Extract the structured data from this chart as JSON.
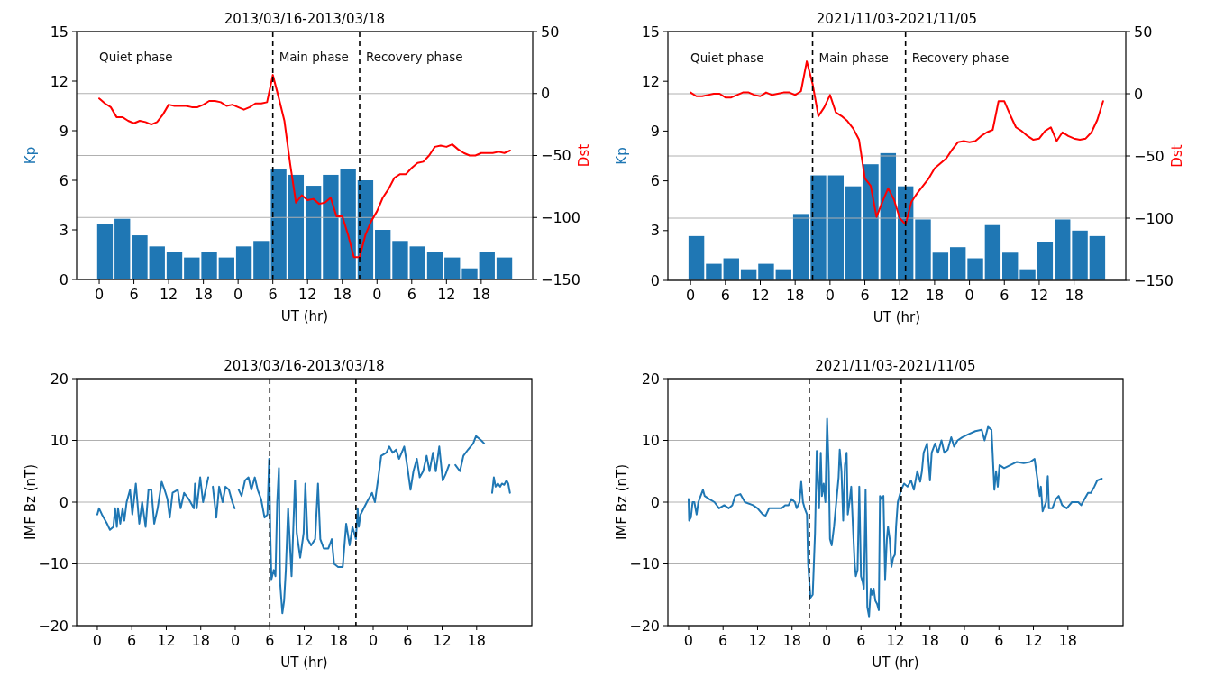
{
  "chart_data": [
    {
      "type": "bar",
      "title": "2013/03/16-2013/03/18",
      "xlabel": "UT (hr)",
      "ylabel": "Kp",
      "y2label": "Dst",
      "x": [
        "2013-03-16T01:00",
        "2013-03-16T04:00",
        "2013-03-16T07:00",
        "2013-03-16T10:00",
        "2013-03-16T13:00",
        "2013-03-16T16:00",
        "2013-03-16T19:00",
        "2013-03-16T22:00",
        "2013-03-17T01:00",
        "2013-03-17T04:00",
        "2013-03-17T07:00",
        "2013-03-17T10:00",
        "2013-03-17T13:00",
        "2013-03-17T16:00",
        "2013-03-17T19:00",
        "2013-03-17T22:00",
        "2013-03-18T01:00",
        "2013-03-18T04:00",
        "2013-03-18T07:00",
        "2013-03-18T10:00",
        "2013-03-18T13:00",
        "2013-03-18T16:00",
        "2013-03-18T19:00",
        "2013-03-18T22:00"
      ],
      "series": [
        {
          "color": "#1f77b4",
          "values": [
            3.33,
            3.67,
            2.67,
            2,
            1.67,
            1.33,
            1.67,
            1.33,
            2,
            2.33,
            6.67,
            6.33,
            5.67,
            6.33,
            6.67,
            6,
            3,
            2.33,
            2,
            1.67,
            1.33,
            0.67,
            1.67,
            1.33
          ]
        },
        {
          "type": "line",
          "axis": "y2",
          "color": "#ff0000",
          "x": [
            "2013-03-16T00:00",
            "2013-03-16T01:00",
            "2013-03-16T02:00",
            "2013-03-16T03:00",
            "2013-03-16T04:00",
            "2013-03-16T05:00",
            "2013-03-16T06:00",
            "2013-03-16T07:00",
            "2013-03-16T08:00",
            "2013-03-16T09:00",
            "2013-03-16T10:00",
            "2013-03-16T11:00",
            "2013-03-16T12:00",
            "2013-03-16T13:00",
            "2013-03-16T14:00",
            "2013-03-16T15:00",
            "2013-03-16T16:00",
            "2013-03-16T17:00",
            "2013-03-16T18:00",
            "2013-03-16T19:00",
            "2013-03-16T20:00",
            "2013-03-16T21:00",
            "2013-03-16T22:00",
            "2013-03-16T23:00",
            "2013-03-17T00:00",
            "2013-03-17T01:00",
            "2013-03-17T02:00",
            "2013-03-17T03:00",
            "2013-03-17T04:00",
            "2013-03-17T05:00",
            "2013-03-17T06:00",
            "2013-03-17T07:00",
            "2013-03-17T08:00",
            "2013-03-17T09:00",
            "2013-03-17T10:00",
            "2013-03-17T11:00",
            "2013-03-17T12:00",
            "2013-03-17T13:00",
            "2013-03-17T14:00",
            "2013-03-17T15:00",
            "2013-03-17T16:00",
            "2013-03-17T17:00",
            "2013-03-17T18:00",
            "2013-03-17T19:00",
            "2013-03-17T20:00",
            "2013-03-17T21:00",
            "2013-03-17T22:00",
            "2013-03-17T23:00",
            "2013-03-18T00:00",
            "2013-03-18T01:00",
            "2013-03-18T02:00",
            "2013-03-18T03:00",
            "2013-03-18T04:00",
            "2013-03-18T05:00",
            "2013-03-18T06:00",
            "2013-03-18T07:00",
            "2013-03-18T08:00",
            "2013-03-18T09:00",
            "2013-03-18T10:00",
            "2013-03-18T11:00",
            "2013-03-18T12:00",
            "2013-03-18T13:00",
            "2013-03-18T14:00",
            "2013-03-18T15:00",
            "2013-03-18T16:00",
            "2013-03-18T17:00",
            "2013-03-18T18:00",
            "2013-03-18T19:00",
            "2013-03-18T20:00",
            "2013-03-18T21:00",
            "2013-03-18T22:00",
            "2013-03-18T23:00"
          ],
          "values": [
            -4,
            -8,
            -11,
            -19,
            -19,
            -22,
            -24,
            -22,
            -23,
            -25,
            -23,
            -17,
            -9,
            -10,
            -10,
            -10,
            -11,
            -11,
            -9,
            -6,
            -6,
            -7,
            -10,
            -9,
            -11,
            -13,
            -11,
            -8,
            -8,
            -7,
            15,
            -3,
            -22,
            -57,
            -88,
            -82,
            -86,
            -85,
            -89,
            -88,
            -84,
            -99,
            -99,
            -114,
            -132,
            -132,
            -114,
            -103,
            -95,
            -84,
            -77,
            -68,
            -65,
            -65,
            -60,
            -56,
            -55,
            -50,
            -43,
            -42,
            -43,
            -41,
            -45,
            -48,
            -50,
            -50,
            -48,
            -48,
            -48,
            -47,
            -48,
            -46
          ]
        }
      ],
      "xlim": [
        "2013-03-15T20:06",
        "2013-03-19T02:54"
      ],
      "xticks": [
        {
          "value": "2013-03-16T00:00",
          "label": "0"
        },
        {
          "value": "2013-03-16T06:00",
          "label": "6"
        },
        {
          "value": "2013-03-16T12:00",
          "label": "12"
        },
        {
          "value": "2013-03-16T18:00",
          "label": "18"
        },
        {
          "value": "2013-03-17T00:00",
          "label": "0"
        },
        {
          "value": "2013-03-17T06:00",
          "label": "6"
        },
        {
          "value": "2013-03-17T12:00",
          "label": "12"
        },
        {
          "value": "2013-03-17T18:00",
          "label": "18"
        },
        {
          "value": "2013-03-18T00:00",
          "label": "0"
        },
        {
          "value": "2013-03-18T06:00",
          "label": "6"
        },
        {
          "value": "2013-03-18T12:00",
          "label": "12"
        },
        {
          "value": "2013-03-18T18:00",
          "label": "18"
        }
      ],
      "ylim": [
        0,
        15
      ],
      "yticks": [
        0,
        3,
        6,
        9,
        12,
        15
      ],
      "y2lim": [
        -150,
        50
      ],
      "y2ticks": [
        -150,
        -100,
        -50,
        0,
        50
      ],
      "grid": "y2",
      "ref_lines": [
        {
          "axis": "x",
          "value": "2013-03-17T06:00",
          "color": "#000000",
          "line_style": "dashed"
        },
        {
          "axis": "x",
          "value": "2013-03-17T21:00",
          "color": "#000000",
          "line_style": "dashed"
        }
      ],
      "annotations": [
        "Quiet phase",
        "Main phase",
        "Recovery phase"
      ]
    },
    {
      "type": "bar",
      "title": "2021/11/03-2021/11/05",
      "xlabel": "UT (hr)",
      "ylabel": "Kp",
      "y2label": "Dst",
      "x": [
        "2021-11-03T01:00",
        "2021-11-03T04:00",
        "2021-11-03T07:00",
        "2021-11-03T10:00",
        "2021-11-03T13:00",
        "2021-11-03T16:00",
        "2021-11-03T19:00",
        "2021-11-03T22:00",
        "2021-11-04T01:00",
        "2021-11-04T04:00",
        "2021-11-04T07:00",
        "2021-11-04T10:00",
        "2021-11-04T13:00",
        "2021-11-04T16:00",
        "2021-11-04T19:00",
        "2021-11-04T22:00",
        "2021-11-05T01:00",
        "2021-11-05T04:00",
        "2021-11-05T07:00",
        "2021-11-05T10:00",
        "2021-11-05T13:00",
        "2021-11-05T16:00",
        "2021-11-05T19:00",
        "2021-11-05T22:00"
      ],
      "series": [
        {
          "color": "#1f77b4",
          "values": [
            2.67,
            1,
            1.33,
            0.67,
            1,
            0.67,
            4,
            6.33,
            6.33,
            5.67,
            7,
            7.67,
            5.67,
            3.67,
            1.67,
            2,
            1.33,
            3.33,
            1.67,
            0.67,
            2.33,
            3.67,
            3,
            2.67
          ]
        },
        {
          "type": "line",
          "axis": "y2",
          "color": "#ff0000",
          "x": [
            "2021-11-03T00:00",
            "2021-11-03T01:00",
            "2021-11-03T02:00",
            "2021-11-03T03:00",
            "2021-11-03T04:00",
            "2021-11-03T05:00",
            "2021-11-03T06:00",
            "2021-11-03T07:00",
            "2021-11-03T08:00",
            "2021-11-03T09:00",
            "2021-11-03T10:00",
            "2021-11-03T11:00",
            "2021-11-03T12:00",
            "2021-11-03T13:00",
            "2021-11-03T14:00",
            "2021-11-03T15:00",
            "2021-11-03T16:00",
            "2021-11-03T17:00",
            "2021-11-03T18:00",
            "2021-11-03T19:00",
            "2021-11-03T20:00",
            "2021-11-03T21:00",
            "2021-11-03T22:00",
            "2021-11-03T23:00",
            "2021-11-04T00:00",
            "2021-11-04T01:00",
            "2021-11-04T02:00",
            "2021-11-04T03:00",
            "2021-11-04T04:00",
            "2021-11-04T05:00",
            "2021-11-04T06:00",
            "2021-11-04T07:00",
            "2021-11-04T08:00",
            "2021-11-04T09:00",
            "2021-11-04T10:00",
            "2021-11-04T11:00",
            "2021-11-04T12:00",
            "2021-11-04T13:00",
            "2021-11-04T14:00",
            "2021-11-04T15:00",
            "2021-11-04T16:00",
            "2021-11-04T17:00",
            "2021-11-04T18:00",
            "2021-11-04T19:00",
            "2021-11-04T20:00",
            "2021-11-04T21:00",
            "2021-11-04T22:00",
            "2021-11-04T23:00",
            "2021-11-05T00:00",
            "2021-11-05T01:00",
            "2021-11-05T02:00",
            "2021-11-05T03:00",
            "2021-11-05T04:00",
            "2021-11-05T05:00",
            "2021-11-05T06:00",
            "2021-11-05T07:00",
            "2021-11-05T08:00",
            "2021-11-05T09:00",
            "2021-11-05T10:00",
            "2021-11-05T11:00",
            "2021-11-05T12:00",
            "2021-11-05T13:00",
            "2021-11-05T14:00",
            "2021-11-05T15:00",
            "2021-11-05T16:00",
            "2021-11-05T17:00",
            "2021-11-05T18:00",
            "2021-11-05T19:00",
            "2021-11-05T20:00",
            "2021-11-05T21:00",
            "2021-11-05T22:00",
            "2021-11-05T23:00"
          ],
          "values": [
            1,
            -2,
            -2,
            -1,
            0,
            0,
            -3,
            -3,
            -1,
            1,
            1,
            -1,
            -2,
            1,
            -1,
            0,
            1,
            1,
            -1,
            2,
            26,
            8,
            -18,
            -11,
            -1,
            -15,
            -18,
            -22,
            -28,
            -37,
            -68,
            -74,
            -99,
            -87,
            -76,
            -85,
            -100,
            -105,
            -87,
            -80,
            -74,
            -68,
            -60,
            -56,
            -52,
            -45,
            -39,
            -38,
            -39,
            -38,
            -34,
            -31,
            -29,
            -6,
            -6,
            -17,
            -27,
            -30,
            -34,
            -37,
            -36,
            -30,
            -27,
            -38,
            -31,
            -34,
            -36,
            -37,
            -36,
            -31,
            -21,
            -6
          ]
        }
      ],
      "xlim": [
        "2021-11-02T20:06",
        "2021-11-06T02:54"
      ],
      "xticks": [
        {
          "value": "2021-11-03T00:00",
          "label": "0"
        },
        {
          "value": "2021-11-03T06:00",
          "label": "6"
        },
        {
          "value": "2021-11-03T12:00",
          "label": "12"
        },
        {
          "value": "2021-11-03T18:00",
          "label": "18"
        },
        {
          "value": "2021-11-04T00:00",
          "label": "0"
        },
        {
          "value": "2021-11-04T06:00",
          "label": "6"
        },
        {
          "value": "2021-11-04T12:00",
          "label": "12"
        },
        {
          "value": "2021-11-04T18:00",
          "label": "18"
        },
        {
          "value": "2021-11-05T00:00",
          "label": "0"
        },
        {
          "value": "2021-11-05T06:00",
          "label": "6"
        },
        {
          "value": "2021-11-05T12:00",
          "label": "12"
        },
        {
          "value": "2021-11-05T18:00",
          "label": "18"
        }
      ],
      "ylim": [
        0,
        15
      ],
      "yticks": [
        0,
        3,
        6,
        9,
        12,
        15
      ],
      "y2lim": [
        -150,
        50
      ],
      "y2ticks": [
        -150,
        -100,
        -50,
        0,
        50
      ],
      "grid": "y2",
      "ref_lines": [
        {
          "axis": "x",
          "value": "2021-11-03T21:00",
          "color": "#000000",
          "line_style": "dashed"
        },
        {
          "axis": "x",
          "value": "2021-11-04T13:00",
          "color": "#000000",
          "line_style": "dashed"
        }
      ],
      "annotations": [
        "Quiet phase",
        "Main phase",
        "Recovery phase"
      ]
    },
    {
      "type": "line",
      "title": "2013/03/16-2013/03/18",
      "xlabel": "UT (hr)",
      "ylabel": "IMF Bz (nT)",
      "series": [
        {
          "color": "#1f77b4",
          "x": [
            "2013-03-16T00:00",
            "2013-03-16T00:18",
            "2013-03-16T00:48",
            "2013-03-16T01:42",
            "2013-03-16T02:12",
            "2013-03-16T02:48",
            "2013-03-16T03:06",
            "2013-03-16T03:24",
            "2013-03-16T03:36",
            "2013-03-16T04:00",
            "2013-03-16T04:24",
            "2013-03-16T04:42",
            "2013-03-16T05:06",
            "2013-03-16T05:42",
            "2013-03-16T06:06",
            "2013-03-16T06:42",
            "2013-03-16T07:18",
            "2013-03-16T07:48",
            "2013-03-16T08:24",
            "2013-03-16T08:54",
            "2013-03-16T09:24",
            "2013-03-16T09:54",
            "2013-03-16T10:30",
            "2013-03-16T11:12",
            "2013-03-16T11:42",
            "2013-03-16T12:12",
            "2013-03-16T12:36",
            "2013-03-16T13:06",
            "2013-03-16T14:00",
            "2013-03-16T14:30",
            "2013-03-16T15:06",
            "2013-03-16T15:54",
            "2013-03-16T16:48",
            "2013-03-16T17:00",
            "2013-03-16T17:18",
            "2013-03-16T17:54",
            "2013-03-16T18:24",
            "2013-03-16T19:18",
            "2013-03-16T19:42",
            "2013-03-16T20:06",
            "2013-03-16T20:42",
            "2013-03-16T21:12",
            "2013-03-16T21:48",
            "2013-03-16T22:18",
            "2013-03-16T22:54",
            "2013-03-16T23:30",
            "2013-03-16T23:54",
            "2013-03-17T00:18",
            "2013-03-17T00:36",
            "2013-03-17T01:06",
            "2013-03-17T01:42",
            "2013-03-17T02:18",
            "2013-03-17T02:48",
            "2013-03-17T03:24",
            "2013-03-17T03:54",
            "2013-03-17T04:30",
            "2013-03-17T05:06",
            "2013-03-17T05:36",
            "2013-03-17T05:54",
            "2013-03-17T06:06",
            "2013-03-17T06:18",
            "2013-03-17T06:42",
            "2013-03-17T07:00",
            "2013-03-17T07:18",
            "2013-03-17T07:36",
            "2013-03-17T07:48",
            "2013-03-17T08:12",
            "2013-03-17T08:30",
            "2013-03-17T08:48",
            "2013-03-17T09:12",
            "2013-03-17T09:48",
            "2013-03-17T10:24",
            "2013-03-17T10:42",
            "2013-03-17T11:18",
            "2013-03-17T11:54",
            "2013-03-17T12:12",
            "2013-03-17T12:36",
            "2013-03-17T13:12",
            "2013-03-17T13:54",
            "2013-03-17T14:24",
            "2013-03-17T14:48",
            "2013-03-17T15:24",
            "2013-03-17T16:12",
            "2013-03-17T16:48",
            "2013-03-17T17:12",
            "2013-03-17T17:54",
            "2013-03-17T18:42",
            "2013-03-17T19:18",
            "2013-03-17T19:54",
            "2013-03-17T20:24",
            "2013-03-17T21:00",
            "2013-03-17T21:18",
            "2013-03-17T21:30",
            "2013-03-17T21:48",
            "2013-03-17T22:54",
            "2013-03-17T23:48",
            "2013-03-18T00:18",
            "2013-03-18T00:54",
            "2013-03-18T01:24",
            "2013-03-18T02:18",
            "2013-03-18T02:48",
            "2013-03-18T03:24",
            "2013-03-18T04:00",
            "2013-03-18T04:30",
            "2013-03-18T05:24",
            "2013-03-18T05:54",
            "2013-03-18T06:30",
            "2013-03-18T07:00",
            "2013-03-18T07:36",
            "2013-03-18T08:06",
            "2013-03-18T08:42",
            "2013-03-18T09:18",
            "2013-03-18T09:48",
            "2013-03-18T10:24",
            "2013-03-18T10:54",
            "2013-03-18T11:30",
            "2013-03-18T12:06",
            "2013-03-18T12:36",
            "2013-03-18T13:12",
            "2013-03-18T13:42",
            "2013-03-18T14:18",
            "2013-03-18T15:06",
            "2013-03-18T15:42",
            "2013-03-18T16:30",
            "2013-03-18T17:24",
            "2013-03-18T17:54",
            "2013-03-18T18:48",
            "2013-03-18T19:18",
            "2013-03-18T20:00",
            "2013-03-18T20:42",
            "2013-03-18T21:00",
            "2013-03-18T21:18",
            "2013-03-18T21:42",
            "2013-03-18T22:06",
            "2013-03-18T22:24",
            "2013-03-18T22:48",
            "2013-03-18T23:12",
            "2013-03-18T23:30",
            "2013-03-18T23:48"
          ],
          "values": [
            -2,
            -1,
            -2,
            -3.5,
            -4.5,
            -4,
            -1,
            -4,
            -1,
            -3.5,
            -1,
            -3,
            0,
            2,
            -2,
            3,
            -3.5,
            0,
            -4,
            2,
            2,
            -3.5,
            -1,
            3.3,
            2,
            0.5,
            -2.5,
            1.5,
            2,
            -1,
            1.5,
            0.5,
            -1,
            3,
            -1,
            4,
            0,
            4,
            null,
            2.5,
            -2.5,
            2.5,
            0,
            2.5,
            2,
            0,
            -1,
            null,
            2,
            1,
            3.5,
            4,
            2,
            4,
            2,
            0.5,
            -2.5,
            -2,
            7,
            -5,
            -12.5,
            -11,
            -12,
            0,
            5.5,
            -13,
            -18,
            -16,
            -11,
            -1,
            -12,
            3.5,
            -5,
            -9,
            -5,
            3,
            -6,
            -7,
            -6,
            3,
            -6,
            -7.5,
            -7.5,
            -6,
            -10,
            -10.5,
            -10.5,
            -3.5,
            -7,
            -4,
            -6,
            -1,
            -4,
            -2,
            0,
            1.5,
            0,
            4,
            7.5,
            8,
            9,
            8,
            8.5,
            7,
            9,
            6,
            2,
            5,
            7,
            4,
            5,
            7.5,
            5,
            8,
            5,
            9,
            3.5,
            4.5,
            6,
            null,
            6,
            5,
            7.5,
            8.5,
            9.5,
            10.7,
            10,
            9.5,
            null,
            1.5,
            4,
            2.5,
            3,
            2.5,
            3,
            2.8,
            3.5,
            3,
            1.5
          ]
        }
      ],
      "xlim": [
        "2013-03-15T20:24",
        "2013-03-19T03:36"
      ],
      "xticks": [
        {
          "value": "2013-03-16T00:00",
          "label": "0"
        },
        {
          "value": "2013-03-16T06:00",
          "label": "6"
        },
        {
          "value": "2013-03-16T12:00",
          "label": "12"
        },
        {
          "value": "2013-03-16T18:00",
          "label": "18"
        },
        {
          "value": "2013-03-17T00:00",
          "label": "0"
        },
        {
          "value": "2013-03-17T06:00",
          "label": "6"
        },
        {
          "value": "2013-03-17T12:00",
          "label": "12"
        },
        {
          "value": "2013-03-17T18:00",
          "label": "18"
        },
        {
          "value": "2013-03-18T00:00",
          "label": "0"
        },
        {
          "value": "2013-03-18T06:00",
          "label": "6"
        },
        {
          "value": "2013-03-18T12:00",
          "label": "12"
        },
        {
          "value": "2013-03-18T18:00",
          "label": "18"
        }
      ],
      "ylim": [
        -20,
        20
      ],
      "yticks": [
        -20,
        -10,
        0,
        10,
        20
      ],
      "grid": "y",
      "ref_lines": [
        {
          "axis": "x",
          "value": "2013-03-17T06:00",
          "color": "#000000",
          "line_style": "dashed"
        },
        {
          "axis": "x",
          "value": "2013-03-17T21:00",
          "color": "#000000",
          "line_style": "dashed"
        }
      ]
    },
    {
      "type": "line",
      "title": "2021/11/03-2021/11/05",
      "xlabel": "UT (hr)",
      "ylabel": "IMF Bz (nT)",
      "series": [
        {
          "color": "#1f77b4",
          "x": [
            "2021-11-03T00:00",
            "2021-11-03T00:06",
            "2021-11-03T00:24",
            "2021-11-03T00:42",
            "2021-11-03T01:00",
            "2021-11-03T01:24",
            "2021-11-03T01:42",
            "2021-11-03T02:06",
            "2021-11-03T02:30",
            "2021-11-03T02:48",
            "2021-11-03T03:36",
            "2021-11-03T04:30",
            "2021-11-03T05:18",
            "2021-11-03T06:12",
            "2021-11-03T07:00",
            "2021-11-03T07:36",
            "2021-11-03T08:06",
            "2021-11-03T09:00",
            "2021-11-03T09:48",
            "2021-11-03T11:12",
            "2021-11-03T12:00",
            "2021-11-03T12:54",
            "2021-11-03T13:24",
            "2021-11-03T14:00",
            "2021-11-03T15:06",
            "2021-11-03T16:12",
            "2021-11-03T16:48",
            "2021-11-03T17:24",
            "2021-11-03T17:54",
            "2021-11-03T18:30",
            "2021-11-03T18:48",
            "2021-11-03T19:18",
            "2021-11-03T19:36",
            "2021-11-03T19:54",
            "2021-11-03T20:12",
            "2021-11-03T20:36",
            "2021-11-03T20:48",
            "2021-11-03T21:12",
            "2021-11-03T21:36",
            "2021-11-03T22:00",
            "2021-11-03T22:18",
            "2021-11-03T22:42",
            "2021-11-03T23:00",
            "2021-11-03T23:12",
            "2021-11-03T23:30",
            "2021-11-03T23:48",
            "2021-11-04T00:06",
            "2021-11-04T00:24",
            "2021-11-04T00:36",
            "2021-11-04T00:54",
            "2021-11-04T01:18",
            "2021-11-04T01:48",
            "2021-11-04T02:06",
            "2021-11-04T02:18",
            "2021-11-04T02:36",
            "2021-11-04T02:54",
            "2021-11-04T03:12",
            "2021-11-04T03:30",
            "2021-11-04T03:42",
            "2021-11-04T04:00",
            "2021-11-04T04:18",
            "2021-11-04T04:36",
            "2021-11-04T04:54",
            "2021-11-04T05:06",
            "2021-11-04T05:24",
            "2021-11-04T05:42",
            "2021-11-04T06:00",
            "2021-11-04T06:18",
            "2021-11-04T06:30",
            "2021-11-04T06:48",
            "2021-11-04T07:06",
            "2021-11-04T07:24",
            "2021-11-04T07:42",
            "2021-11-04T07:54",
            "2021-11-04T08:12",
            "2021-11-04T08:30",
            "2021-11-04T08:48",
            "2021-11-04T09:06",
            "2021-11-04T09:18",
            "2021-11-04T09:36",
            "2021-11-04T09:54",
            "2021-11-04T10:12",
            "2021-11-04T10:30",
            "2021-11-04T10:42",
            "2021-11-04T11:00",
            "2021-11-04T11:18",
            "2021-11-04T11:36",
            "2021-11-04T11:54",
            "2021-11-04T12:06",
            "2021-11-04T12:24",
            "2021-11-04T13:00",
            "2021-11-04T13:30",
            "2021-11-04T14:06",
            "2021-11-04T14:42",
            "2021-11-04T15:12",
            "2021-11-04T15:48",
            "2021-11-04T16:18",
            "2021-11-04T16:36",
            "2021-11-04T16:54",
            "2021-11-04T17:30",
            "2021-11-04T18:00",
            "2021-11-04T18:18",
            "2021-11-04T18:54",
            "2021-11-04T19:24",
            "2021-11-04T20:00",
            "2021-11-04T20:30",
            "2021-11-04T21:06",
            "2021-11-04T21:42",
            "2021-11-04T22:12",
            "2021-11-04T22:48",
            "2021-11-04T23:36",
            "2021-11-05T00:42",
            "2021-11-05T01:54",
            "2021-11-05T03:00",
            "2021-11-05T03:30",
            "2021-11-05T04:06",
            "2021-11-05T04:42",
            "2021-11-05T04:54",
            "2021-11-05T05:12",
            "2021-11-05T05:30",
            "2021-11-05T05:48",
            "2021-11-05T06:06",
            "2021-11-05T06:54",
            "2021-11-05T08:00",
            "2021-11-05T09:06",
            "2021-11-05T10:18",
            "2021-11-05T11:24",
            "2021-11-05T12:12",
            "2021-11-05T12:30",
            "2021-11-05T13:06",
            "2021-11-05T13:18",
            "2021-11-05T13:36",
            "2021-11-05T14:12",
            "2021-11-05T14:30",
            "2021-11-05T14:42",
            "2021-11-05T15:18",
            "2021-11-05T15:54",
            "2021-11-05T16:24",
            "2021-11-05T17:00",
            "2021-11-05T17:48",
            "2021-11-05T18:42",
            "2021-11-05T19:48",
            "2021-11-05T20:18",
            "2021-11-05T20:54",
            "2021-11-05T21:30",
            "2021-11-05T22:00",
            "2021-11-05T22:36",
            "2021-11-05T23:06",
            "2021-11-05T23:54"
          ],
          "values": [
            0.5,
            -3,
            -2.5,
            0,
            0,
            -2,
            0,
            1,
            2,
            1,
            0.5,
            0,
            -1,
            -0.5,
            -1,
            -0.5,
            1,
            1.3,
            0,
            -0.5,
            -1,
            -2,
            -2.2,
            -1,
            -1,
            -1,
            -0.5,
            -0.5,
            0.5,
            0,
            -1,
            0,
            3.3,
            0,
            -1,
            -2,
            -10,
            -15.5,
            -15,
            -5,
            8.3,
            -1,
            8,
            1,
            3,
            0,
            13.5,
            5,
            -6,
            -7,
            -4,
            1,
            4,
            8.5,
            5,
            -3,
            6,
            8,
            -2,
            0,
            2.5,
            -4,
            -10,
            -12,
            -11,
            2.5,
            -12,
            -13,
            -14,
            2,
            -17,
            -18.5,
            -14,
            -15,
            -14,
            -16,
            -16.5,
            -17.5,
            1,
            0.5,
            1,
            -12.5,
            -6,
            -4,
            -6,
            -10.5,
            -9,
            -8.5,
            -4,
            0,
            2,
            3,
            2.5,
            3.5,
            2,
            5,
            3.3,
            5,
            8,
            9.5,
            3.5,
            8,
            9.5,
            8,
            10,
            8,
            8.5,
            10.5,
            9,
            10,
            10.5,
            11,
            11.5,
            11.7,
            10,
            12.2,
            11.7,
            8,
            2,
            5,
            2.5,
            6,
            5.5,
            6,
            6.5,
            6.3,
            6.5,
            7,
            5,
            1,
            2.5,
            -1.5,
            0,
            4.2,
            -1,
            -1,
            0.5,
            1,
            -0.5,
            -1,
            0,
            0,
            -0.5,
            0.5,
            1.5,
            1.5,
            2.5,
            3.5,
            3.8
          ]
        }
      ],
      "xlim": [
        "2021-11-02T20:24",
        "2021-11-06T03:36"
      ],
      "xticks": [
        {
          "value": "2021-11-03T00:00",
          "label": "0"
        },
        {
          "value": "2021-11-03T06:00",
          "label": "6"
        },
        {
          "value": "2021-11-03T12:00",
          "label": "12"
        },
        {
          "value": "2021-11-03T18:00",
          "label": "18"
        },
        {
          "value": "2021-11-04T00:00",
          "label": "0"
        },
        {
          "value": "2021-11-04T06:00",
          "label": "6"
        },
        {
          "value": "2021-11-04T12:00",
          "label": "12"
        },
        {
          "value": "2021-11-04T18:00",
          "label": "18"
        },
        {
          "value": "2021-11-05T00:00",
          "label": "0"
        },
        {
          "value": "2021-11-05T06:00",
          "label": "6"
        },
        {
          "value": "2021-11-05T12:00",
          "label": "12"
        },
        {
          "value": "2021-11-05T18:00",
          "label": "18"
        }
      ],
      "ylim": [
        -20,
        20
      ],
      "yticks": [
        -20,
        -10,
        0,
        10,
        20
      ],
      "grid": "y",
      "ref_lines": [
        {
          "axis": "x",
          "value": "2021-11-03T21:00",
          "color": "#000000",
          "line_style": "dashed"
        },
        {
          "axis": "x",
          "value": "2021-11-04T13:00",
          "color": "#000000",
          "line_style": "dashed"
        }
      ]
    }
  ]
}
